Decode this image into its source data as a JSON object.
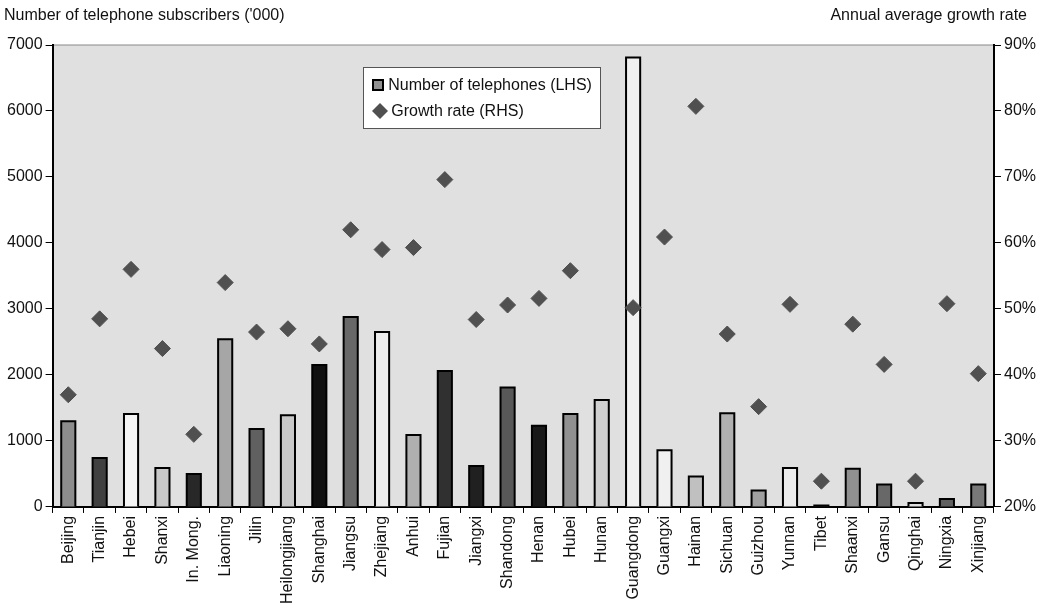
{
  "chart_data": {
    "type": "bar",
    "ylabel": "Number of telephone subscribers ('000)",
    "y2label": "Annual average growth rate",
    "categories": [
      "Beijing",
      "Tianjin",
      "Hebei",
      "Shanxi",
      "In. Mong.",
      "Liaoning",
      "Jilin",
      "Heilongjiang",
      "Shanghai",
      "Jiangsu",
      "Zhejiang",
      "Anhui",
      "Fujian",
      "Jiangxi",
      "Shandong",
      "Henan",
      "Hubei",
      "Hunan",
      "Guangdong",
      "Guangxi",
      "Hainan",
      "Sichuan",
      "Guizhou",
      "Yunnan",
      "Tibet",
      "Shaanxi",
      "Gansu",
      "Qinghai",
      "Ningxia",
      "Xinjiang"
    ],
    "series": [
      {
        "name": "Number of telephones (LHS)",
        "color": "#909090",
        "colors": [
          "#8c8c8c",
          "#404040",
          "#f5f5f5",
          "#c8c8c8",
          "#282828",
          "#a6a6a6",
          "#606060",
          "#c8c8c8",
          "#101010",
          "#686868",
          "#ececec",
          "#b0b0b0",
          "#303030",
          "#202020",
          "#585858",
          "#181818",
          "#909090",
          "#d0d0d0",
          "#f0f0f0",
          "#f0f0f0",
          "#c0c0c0",
          "#b0b0b0",
          "#a0a0a0",
          "#ececec",
          "#202020",
          "#909090",
          "#686868",
          "#e0e0e0",
          "#606060",
          "#787878"
        ],
        "values": [
          1300,
          740,
          1410,
          590,
          500,
          2540,
          1180,
          1390,
          2150,
          2880,
          2650,
          1090,
          2060,
          620,
          1810,
          1230,
          1410,
          1620,
          6810,
          860,
          460,
          1420,
          250,
          590,
          20,
          580,
          340,
          60,
          120,
          340
        ]
      },
      {
        "name": "Growth rate (RHS)",
        "type": "scatter",
        "axis": "y2",
        "color": "#505050",
        "values": [
          37,
          48.5,
          56,
          44,
          31,
          54,
          46.5,
          47,
          44.7,
          62,
          59,
          59.3,
          69.6,
          48.4,
          50.6,
          51.6,
          55.8,
          null,
          50.2,
          60.9,
          80.7,
          46.2,
          35.2,
          50.7,
          23.9,
          47.7,
          41.6,
          23.9,
          50.8,
          40.2
        ]
      }
    ],
    "ylim": [
      0,
      7000
    ],
    "yticks": [
      0,
      1000,
      2000,
      3000,
      4000,
      5000,
      6000,
      7000
    ],
    "y2lim": [
      20,
      90
    ],
    "y2ticks": [
      {
        "value": 20,
        "label": "20%"
      },
      {
        "value": 30,
        "label": "30%"
      },
      {
        "value": 40,
        "label": "40%"
      },
      {
        "value": 50,
        "label": "50%"
      },
      {
        "value": 60,
        "label": "60%"
      },
      {
        "value": 70,
        "label": "70%"
      },
      {
        "value": 80,
        "label": "80%"
      },
      {
        "value": 90,
        "label": "90%"
      }
    ],
    "marker": "diamond",
    "grid": false,
    "legend": "top"
  }
}
